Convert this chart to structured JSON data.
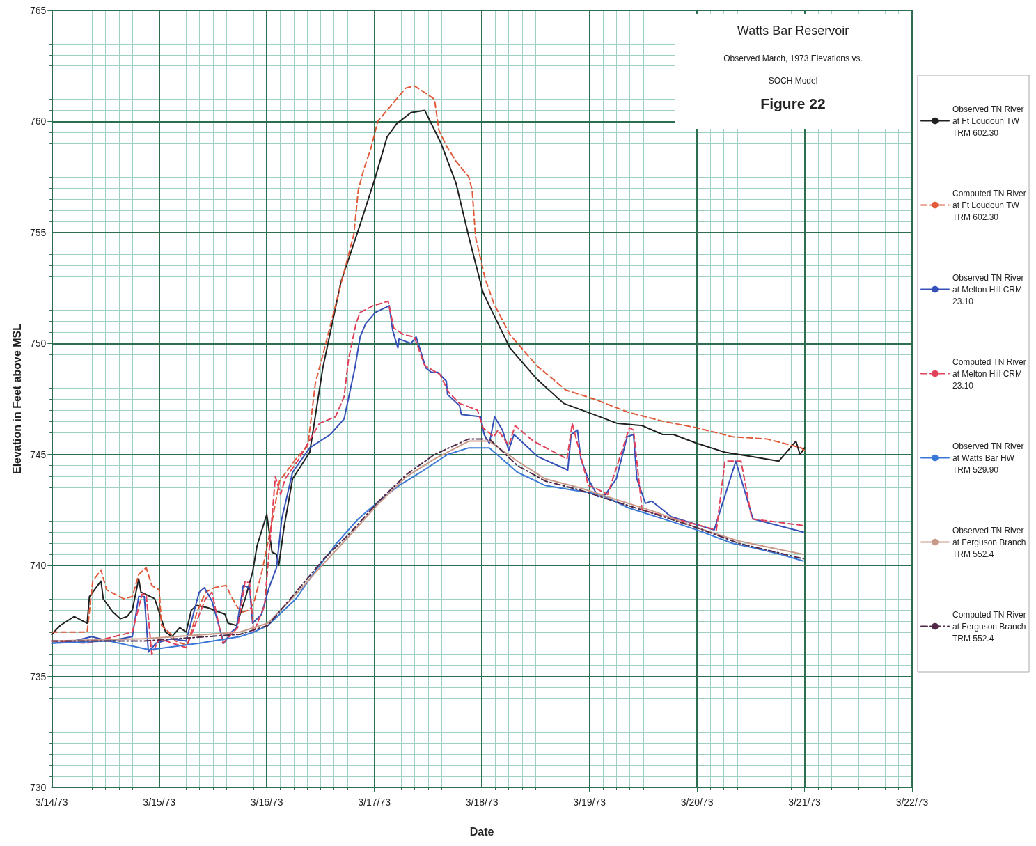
{
  "chart_data": {
    "type": "line",
    "title": "Watts Bar Reservoir",
    "subtitle": "Observed March, 1973 Elevations vs.\nSOCH Model",
    "annotations": [
      "Figure 22"
    ],
    "xlabel": "Date",
    "ylabel": "Elevation in Feet above MSL",
    "xlim": [
      "1973-03-14",
      "1973-03-22"
    ],
    "xticks": [
      {
        "value": "1973-03-14",
        "label": "3/14/73"
      },
      {
        "value": "1973-03-14T03:00",
        "label": null
      },
      {
        "value": "1973-03-14T06:00",
        "label": null
      },
      {
        "value": "1973-03-14T09:00",
        "label": null
      },
      {
        "value": "1973-03-14T12:00",
        "label": null
      },
      {
        "value": "1973-03-14T15:00",
        "label": null
      },
      {
        "value": "1973-03-14T18:00",
        "label": null
      },
      {
        "value": "1973-03-14T21:00",
        "label": null
      },
      {
        "value": "1973-03-15",
        "label": "3/15/73"
      },
      {
        "value": "1973-03-15T03:00",
        "label": null
      },
      {
        "value": "1973-03-15T06:00",
        "label": null
      },
      {
        "value": "1973-03-15T09:00",
        "label": null
      },
      {
        "value": "1973-03-15T12:00",
        "label": null
      },
      {
        "value": "1973-03-15T15:00",
        "label": null
      },
      {
        "value": "1973-03-15T18:00",
        "label": null
      },
      {
        "value": "1973-03-15T21:00",
        "label": null
      },
      {
        "value": "1973-03-16",
        "label": "3/16/73"
      },
      {
        "value": "1973-03-16T03:00",
        "label": null
      },
      {
        "value": "1973-03-16T06:00",
        "label": null
      },
      {
        "value": "1973-03-16T09:00",
        "label": null
      },
      {
        "value": "1973-03-16T12:00",
        "label": null
      },
      {
        "value": "1973-03-16T15:00",
        "label": null
      },
      {
        "value": "1973-03-16T18:00",
        "label": null
      },
      {
        "value": "1973-03-16T21:00",
        "label": null
      },
      {
        "value": "1973-03-17",
        "label": "3/17/73"
      },
      {
        "value": "1973-03-17T03:00",
        "label": null
      },
      {
        "value": "1973-03-17T06:00",
        "label": null
      },
      {
        "value": "1973-03-17T09:00",
        "label": null
      },
      {
        "value": "1973-03-17T12:00",
        "label": null
      },
      {
        "value": "1973-03-17T15:00",
        "label": null
      },
      {
        "value": "1973-03-17T18:00",
        "label": null
      },
      {
        "value": "1973-03-17T21:00",
        "label": null
      },
      {
        "value": "1973-03-18",
        "label": "3/18/73"
      },
      {
        "value": "1973-03-18T03:00",
        "label": null
      },
      {
        "value": "1973-03-18T06:00",
        "label": null
      },
      {
        "value": "1973-03-18T09:00",
        "label": null
      },
      {
        "value": "1973-03-18T12:00",
        "label": null
      },
      {
        "value": "1973-03-18T15:00",
        "label": null
      },
      {
        "value": "1973-03-18T18:00",
        "label": null
      },
      {
        "value": "1973-03-18T21:00",
        "label": null
      },
      {
        "value": "1973-03-19",
        "label": "3/19/73"
      },
      {
        "value": "1973-03-19T03:00",
        "label": null
      },
      {
        "value": "1973-03-19T06:00",
        "label": null
      },
      {
        "value": "1973-03-19T09:00",
        "label": null
      },
      {
        "value": "1973-03-19T12:00",
        "label": null
      },
      {
        "value": "1973-03-19T15:00",
        "label": null
      },
      {
        "value": "1973-03-19T18:00",
        "label": null
      },
      {
        "value": "1973-03-19T21:00",
        "label": null
      },
      {
        "value": "1973-03-20",
        "label": "3/20/73"
      },
      {
        "value": "1973-03-20T03:00",
        "label": null
      },
      {
        "value": "1973-03-20T06:00",
        "label": null
      },
      {
        "value": "1973-03-20T09:00",
        "label": null
      },
      {
        "value": "1973-03-20T12:00",
        "label": null
      },
      {
        "value": "1973-03-20T15:00",
        "label": null
      },
      {
        "value": "1973-03-20T18:00",
        "label": null
      },
      {
        "value": "1973-03-20T21:00",
        "label": null
      },
      {
        "value": "1973-03-21",
        "label": "3/21/73"
      },
      {
        "value": "1973-03-21T03:00",
        "label": null
      },
      {
        "value": "1973-03-21T06:00",
        "label": null
      },
      {
        "value": "1973-03-21T09:00",
        "label": null
      },
      {
        "value": "1973-03-21T12:00",
        "label": null
      },
      {
        "value": "1973-03-21T15:00",
        "label": null
      },
      {
        "value": "1973-03-21T18:00",
        "label": null
      },
      {
        "value": "1973-03-21T21:00",
        "label": null
      },
      {
        "value": "1973-03-22",
        "label": "3/22/73"
      }
    ],
    "ylim": [
      730,
      765
    ],
    "yticks": [
      730,
      {
        "value": 730.5,
        "label": null
      },
      {
        "value": 731,
        "label": null
      },
      {
        "value": 731.5,
        "label": null
      },
      {
        "value": 732,
        "label": null
      },
      {
        "value": 732.5,
        "label": null
      },
      {
        "value": 733,
        "label": null
      },
      {
        "value": 733.5,
        "label": null
      },
      {
        "value": 734,
        "label": null
      },
      {
        "value": 734.5,
        "label": null
      },
      735,
      {
        "value": 735.5,
        "label": null
      },
      {
        "value": 736,
        "label": null
      },
      {
        "value": 736.5,
        "label": null
      },
      {
        "value": 737,
        "label": null
      },
      {
        "value": 737.5,
        "label": null
      },
      {
        "value": 738,
        "label": null
      },
      {
        "value": 738.5,
        "label": null
      },
      {
        "value": 739,
        "label": null
      },
      {
        "value": 739.5,
        "label": null
      },
      740,
      {
        "value": 740.5,
        "label": null
      },
      {
        "value": 741,
        "label": null
      },
      {
        "value": 741.5,
        "label": null
      },
      {
        "value": 742,
        "label": null
      },
      {
        "value": 742.5,
        "label": null
      },
      {
        "value": 743,
        "label": null
      },
      {
        "value": 743.5,
        "label": null
      },
      {
        "value": 744,
        "label": null
      },
      {
        "value": 744.5,
        "label": null
      },
      745,
      {
        "value": 745.5,
        "label": null
      },
      {
        "value": 746,
        "label": null
      },
      {
        "value": 746.5,
        "label": null
      },
      {
        "value": 747,
        "label": null
      },
      {
        "value": 747.5,
        "label": null
      },
      {
        "value": 748,
        "label": null
      },
      {
        "value": 748.5,
        "label": null
      },
      {
        "value": 749,
        "label": null
      },
      {
        "value": 749.5,
        "label": null
      },
      750,
      {
        "value": 750.5,
        "label": null
      },
      {
        "value": 751,
        "label": null
      },
      {
        "value": 751.5,
        "label": null
      },
      {
        "value": 752,
        "label": null
      },
      {
        "value": 752.5,
        "label": null
      },
      {
        "value": 753,
        "label": null
      },
      {
        "value": 753.5,
        "label": null
      },
      {
        "value": 754,
        "label": null
      },
      {
        "value": 754.5,
        "label": null
      },
      755,
      {
        "value": 755.5,
        "label": null
      },
      {
        "value": 756,
        "label": null
      },
      {
        "value": 756.5,
        "label": null
      },
      {
        "value": 757,
        "label": null
      },
      {
        "value": 757.5,
        "label": null
      },
      {
        "value": 758,
        "label": null
      },
      {
        "value": 758.5,
        "label": null
      },
      {
        "value": 759,
        "label": null
      },
      {
        "value": 759.5,
        "label": null
      },
      760,
      {
        "value": 760.5,
        "label": null
      },
      {
        "value": 761,
        "label": null
      },
      {
        "value": 761.5,
        "label": null
      },
      {
        "value": 762,
        "label": null
      },
      {
        "value": 762.5,
        "label": null
      },
      {
        "value": 763,
        "label": null
      },
      {
        "value": 763.5,
        "label": null
      },
      {
        "value": 764,
        "label": null
      },
      {
        "value": 764.5,
        "label": null
      },
      765
    ],
    "grid": true,
    "legend": "right",
    "marker": "none",
    "series": [
      {
        "name": "Observed TN River at Ft Loudoun TW TRM 602.30",
        "color": "#202020",
        "line_style": "solid",
        "x": [
          "1973-03-14T00:00",
          "1973-03-14T01:55",
          "1973-03-14T05:00",
          "1973-03-14T07:55",
          "1973-03-14T08:25",
          "1973-03-14T11:00",
          "1973-03-14T11:30",
          "1973-03-14T13:40",
          "1973-03-14T15:20",
          "1973-03-14T16:50",
          "1973-03-14T18:00",
          "1973-03-14T19:25",
          "1973-03-14T19:55",
          "1973-03-14T23:00",
          "1973-03-15T01:25",
          "1973-03-15T02:50",
          "1973-03-15T04:35",
          "1973-03-15T06:00",
          "1973-03-15T07:10",
          "1973-03-15T08:25",
          "1973-03-15T10:50",
          "1973-03-15T14:40",
          "1973-03-15T15:20",
          "1973-03-15T17:15",
          "1973-03-15T19:10",
          "1973-03-15T20:50",
          "1973-03-15T21:50",
          "1973-03-16T00:00",
          "1973-03-16T01:10",
          "1973-03-16T02:10",
          "1973-03-16T02:40",
          "1973-03-16T03:50",
          "1973-03-16T05:45",
          "1973-03-16T09:35",
          "1973-03-16T12:30",
          "1973-03-16T16:35",
          "1973-03-16T20:25",
          "1973-03-17T00:15",
          "1973-03-17T02:50",
          "1973-03-17T05:00",
          "1973-03-17T08:10",
          "1973-03-17T11:15",
          "1973-03-17T14:55",
          "1973-03-17T18:15",
          "1973-03-17T21:05",
          "1973-03-18T00:15",
          "1973-03-18T01:40",
          "1973-03-18T06:15",
          "1973-03-18T12:15",
          "1973-03-18T18:15",
          "1973-03-19T01:00",
          "1973-03-19T06:15",
          "1973-03-19T11:45",
          "1973-03-19T16:20",
          "1973-03-19T18:45",
          "1973-03-20T00:00",
          "1973-03-20T06:15",
          "1973-03-20T12:30",
          "1973-03-20T18:15",
          "1973-03-20T22:05",
          "1973-03-20T23:00",
          "1973-03-21T00:00"
        ],
        "values": [
          736.9,
          737.3,
          737.7,
          737.4,
          738.6,
          739.3,
          738.5,
          737.9,
          737.6,
          737.7,
          738.0,
          739.4,
          738.8,
          738.5,
          737.0,
          736.8,
          737.2,
          737.0,
          738.0,
          738.2,
          738.1,
          737.8,
          737.4,
          737.3,
          738.5,
          739.7,
          740.9,
          742.3,
          740.6,
          740.5,
          740.0,
          741.7,
          743.9,
          745.1,
          748.9,
          752.8,
          755.1,
          757.5,
          759.3,
          759.9,
          760.4,
          760.5,
          759.0,
          757.2,
          754.8,
          752.3,
          751.7,
          749.8,
          748.4,
          747.3,
          746.8,
          746.4,
          746.3,
          745.9,
          745.9,
          745.5,
          745.1,
          744.9,
          744.7,
          745.6,
          745.0,
          745.3
        ]
      },
      {
        "name": "Computed TN River at Ft Loudoun TW TRM 602.30",
        "color": "#e05a3a",
        "line_style": "dashed",
        "x": [
          "1973-03-14T00:00",
          "1973-03-14T07:55",
          "1973-03-14T09:10",
          "1973-03-14T11:00",
          "1973-03-14T12:15",
          "1973-03-14T16:05",
          "1973-03-14T18:00",
          "1973-03-14T19:25",
          "1973-03-14T21:05",
          "1973-03-14T22:20",
          "1973-03-15T00:00",
          "1973-03-15T00:30",
          "1973-03-15T02:40",
          "1973-03-15T03:35",
          "1973-03-15T06:15",
          "1973-03-15T08:25",
          "1973-03-15T10:20",
          "1973-03-15T12:15",
          "1973-03-15T14:55",
          "1973-03-15T16:05",
          "1973-03-15T17:30",
          "1973-03-15T18:30",
          "1973-03-15T20:10",
          "1973-03-15T21:05",
          "1973-03-15T23:00",
          "1973-03-16T01:00",
          "1973-03-16T02:50",
          "1973-03-16T06:30",
          "1973-03-16T09:10",
          "1973-03-16T10:50",
          "1973-03-16T13:10",
          "1973-03-16T16:50",
          "1973-03-16T19:25",
          "1973-03-16T20:25",
          "1973-03-16T21:35",
          "1973-03-16T23:15",
          "1973-03-17T00:45",
          "1973-03-17T02:50",
          "1973-03-17T07:00",
          "1973-03-17T08:55",
          "1973-03-17T11:15",
          "1973-03-17T13:25",
          "1973-03-17T14:25",
          "1973-03-17T16:05",
          "1973-03-17T18:15",
          "1973-03-17T21:05",
          "1973-03-17T21:50",
          "1973-03-17T22:35",
          "1973-03-18T00:45",
          "1973-03-18T02:40",
          "1973-03-18T06:15",
          "1973-03-18T12:15",
          "1973-03-18T18:45",
          "1973-03-19T01:00",
          "1973-03-19T08:40",
          "1973-03-19T16:20",
          "1973-03-20T00:00",
          "1973-03-20T07:55",
          "1973-03-20T15:35",
          "1973-03-20T23:15",
          "1973-03-21T00:30"
        ],
        "values": [
          737.0,
          737.0,
          739.3,
          739.8,
          738.9,
          738.5,
          738.6,
          739.6,
          739.9,
          739.1,
          738.9,
          737.3,
          736.9,
          736.6,
          736.4,
          737.9,
          738.8,
          739.0,
          739.1,
          738.6,
          738.1,
          737.9,
          738.0,
          738.3,
          739.8,
          741.8,
          743.8,
          744.8,
          745.4,
          748.2,
          750.0,
          752.9,
          754.9,
          756.9,
          757.8,
          758.8,
          760.0,
          760.5,
          761.5,
          761.6,
          761.3,
          761.0,
          759.6,
          758.9,
          758.2,
          757.5,
          756.9,
          754.8,
          752.9,
          751.8,
          750.4,
          749.0,
          747.9,
          747.5,
          746.9,
          746.5,
          746.2,
          745.8,
          745.7,
          745.3,
          745.1
        ]
      },
      {
        "name": "Observed TN River at Melton Hill CRM 23.10",
        "color": "#3550b8",
        "line_style": "solid",
        "x": [
          "1973-03-14T00:00",
          "1973-03-14T05:00",
          "1973-03-14T08:55",
          "1973-03-14T12:45",
          "1973-03-14T18:00",
          "1973-03-14T19:25",
          "1973-03-14T20:40",
          "1973-03-14T21:35",
          "1973-03-14T23:15",
          "1973-03-15T02:40",
          "1973-03-15T06:00",
          "1973-03-15T08:55",
          "1973-03-15T10:05",
          "1973-03-15T11:45",
          "1973-03-15T14:25",
          "1973-03-15T16:05",
          "1973-03-15T17:15",
          "1973-03-15T18:45",
          "1973-03-15T20:10",
          "1973-03-15T20:50",
          "1973-03-15T22:50",
          "1973-03-16T00:30",
          "1973-03-16T02:10",
          "1973-03-16T03:20",
          "1973-03-16T05:45",
          "1973-03-16T09:35",
          "1973-03-16T14:10",
          "1973-03-16T17:15",
          "1973-03-16T19:40",
          "1973-03-16T20:50",
          "1973-03-16T22:05",
          "1973-03-17T00:15",
          "1973-03-17T03:20",
          "1973-03-17T04:05",
          "1973-03-17T05:15",
          "1973-03-17T05:30",
          "1973-03-17T08:10",
          "1973-03-17T09:20",
          "1973-03-17T11:30",
          "1973-03-17T12:45",
          "1973-03-17T14:10",
          "1973-03-17T16:05",
          "1973-03-17T16:20",
          "1973-03-17T19:00",
          "1973-03-17T19:25",
          "1973-03-17T23:45",
          "1973-03-18T00:30",
          "1973-03-18T01:40",
          "1973-03-18T02:50",
          "1973-03-18T04:35",
          "1973-03-18T06:00",
          "1973-03-18T07:10",
          "1973-03-18T12:30",
          "1973-03-18T19:10",
          "1973-03-18T19:55",
          "1973-03-18T21:20",
          "1973-03-18T22:05",
          "1973-03-18T23:45",
          "1973-03-19T01:55",
          "1973-03-19T03:35",
          "1973-03-19T06:00",
          "1973-03-19T08:25",
          "1973-03-19T09:50",
          "1973-03-19T10:35",
          "1973-03-19T12:30",
          "1973-03-19T13:55",
          "1973-03-19T18:15",
          "1973-03-20T03:50",
          "1973-03-20T08:40",
          "1973-03-20T12:30",
          "1973-03-20T23:45"
        ],
        "values": [
          736.5,
          736.6,
          736.8,
          736.6,
          736.8,
          738.6,
          738.6,
          736.1,
          736.5,
          736.7,
          736.6,
          738.8,
          739.0,
          738.4,
          736.5,
          737.0,
          737.2,
          739.1,
          739.0,
          737.4,
          737.8,
          739.0,
          739.9,
          742.1,
          744.2,
          745.3,
          745.9,
          746.6,
          748.9,
          750.3,
          750.9,
          751.4,
          751.7,
          750.6,
          749.8,
          750.2,
          750.0,
          750.3,
          748.9,
          748.7,
          748.7,
          748.3,
          747.7,
          747.2,
          746.8,
          746.7,
          745.9,
          745.5,
          746.7,
          746.1,
          745.2,
          745.9,
          744.9,
          744.3,
          745.9,
          746.1,
          744.8,
          743.9,
          743.1,
          743.2,
          743.9,
          745.8,
          745.9,
          743.9,
          742.8,
          742.9,
          742.2,
          741.6,
          744.7,
          742.1,
          741.5
        ]
      },
      {
        "name": "Computed TN River at Melton Hill CRM 23.10",
        "color": "#e0405a",
        "line_style": "dashed",
        "x": [
          "1973-03-14T00:00",
          "1973-03-14T07:55",
          "1973-03-14T18:00",
          "1973-03-14T20:10",
          "1973-03-14T21:05",
          "1973-03-14T22:20",
          "1973-03-15T00:00",
          "1973-03-15T06:00",
          "1973-03-15T10:20",
          "1973-03-15T11:45",
          "1973-03-15T14:10",
          "1973-03-15T17:30",
          "1973-03-15T19:10",
          "1973-03-15T20:10",
          "1973-03-15T21:05",
          "1973-03-15T23:30",
          "1973-03-16T01:55",
          "1973-03-16T03:05",
          "1973-03-16T04:05",
          "1973-03-16T07:10",
          "1973-03-16T11:45",
          "1973-03-16T15:20",
          "1973-03-16T17:15",
          "1973-03-16T18:15",
          "1973-03-16T19:55",
          "1973-03-16T20:50",
          "1973-03-16T23:45",
          "1973-03-17T03:05",
          "1973-03-17T04:20",
          "1973-03-17T06:30",
          "1973-03-17T08:55",
          "1973-03-17T11:15",
          "1973-03-17T14:40",
          "1973-03-17T16:35",
          "1973-03-17T19:00",
          "1973-03-17T23:00",
          "1973-03-18T00:15",
          "1973-03-18T02:40",
          "1973-03-18T03:35",
          "1973-03-18T06:00",
          "1973-03-18T07:25",
          "1973-03-18T11:30",
          "1973-03-18T19:00",
          "1973-03-18T20:10",
          "1973-03-18T23:45",
          "1973-03-19T01:10",
          "1973-03-19T04:05",
          "1973-03-19T08:55",
          "1973-03-19T09:50",
          "1973-03-19T11:45",
          "1973-03-20T04:20",
          "1973-03-20T06:15",
          "1973-03-20T09:50",
          "1973-03-20T12:15",
          "1973-03-20T23:45"
        ],
        "values": [
          736.6,
          736.5,
          737.0,
          738.7,
          738.7,
          736.0,
          736.7,
          736.3,
          738.5,
          738.8,
          736.5,
          737.2,
          739.3,
          739.2,
          737.0,
          738.2,
          744.0,
          743.2,
          743.9,
          744.8,
          746.4,
          746.7,
          747.6,
          749.3,
          750.9,
          751.4,
          751.7,
          751.9,
          750.7,
          750.4,
          750.3,
          749.0,
          748.6,
          747.8,
          747.3,
          747.0,
          746.2,
          745.8,
          746.1,
          745.4,
          746.3,
          745.6,
          744.8,
          746.4,
          743.6,
          743.5,
          743.2,
          746.2,
          746.1,
          742.5,
          741.6,
          744.7,
          744.7,
          742.1,
          741.8
        ]
      },
      {
        "name": "Observed TN River at Watts Bar HW TRM 529.90",
        "color": "#3a78d8",
        "line_style": "solid",
        "x": [
          "1973-03-14T00:00",
          "1973-03-14T12:45",
          "1973-03-14T21:50",
          "1973-03-15T08:55",
          "1973-03-15T18:00",
          "1973-03-15T21:05",
          "1973-03-16T00:15",
          "1973-03-16T06:30",
          "1973-03-16T11:00",
          "1973-03-16T15:35",
          "1973-03-16T20:25",
          "1973-03-17T01:00",
          "1973-03-17T05:30",
          "1973-03-17T10:20",
          "1973-03-17T16:20",
          "1973-03-17T21:05",
          "1973-03-18T01:40",
          "1973-03-18T07:55",
          "1973-03-18T14:10",
          "1973-03-18T20:10",
          "1973-03-19T02:25",
          "1973-03-19T08:40",
          "1973-03-19T18:00",
          "1973-03-20T00:00",
          "1973-03-20T07:55",
          "1973-03-20T12:30",
          "1973-03-20T18:45",
          "1973-03-20T23:45"
        ],
        "values": [
          736.5,
          736.6,
          736.2,
          736.5,
          736.8,
          737.0,
          737.3,
          738.5,
          739.8,
          741.0,
          742.1,
          742.9,
          743.6,
          744.2,
          745.0,
          745.3,
          745.3,
          744.2,
          743.6,
          743.4,
          743.2,
          742.6,
          742.0,
          741.6,
          741.0,
          740.8,
          740.5,
          740.2
        ]
      },
      {
        "name": "Observed TN River at Ferguson Branch TRM 552.4",
        "color": "#c89888",
        "line_style": "solid",
        "x": [
          "1973-03-14T00:00",
          "1973-03-14T20:25",
          "1973-03-15T18:00",
          "1973-03-16T00:15",
          "1973-03-16T06:30",
          "1973-03-16T12:45",
          "1973-03-16T18:45",
          "1973-03-17T01:00",
          "1973-03-17T07:10",
          "1973-03-17T13:25",
          "1973-03-17T21:05",
          "1973-03-18T01:40",
          "1973-03-18T07:55",
          "1973-03-18T14:10",
          "1973-03-18T21:50",
          "1973-03-19T05:30",
          "1973-03-19T14:55",
          "1973-03-20T00:00",
          "1973-03-20T09:20",
          "1973-03-20T23:45"
        ],
        "values": [
          736.6,
          736.7,
          737.0,
          737.4,
          738.7,
          740.1,
          741.4,
          742.8,
          744.0,
          744.8,
          745.6,
          745.6,
          744.7,
          743.9,
          743.5,
          743.0,
          742.4,
          741.7,
          741.1,
          740.5
        ]
      },
      {
        "name": "Computed TN River at Ferguson Branch TRM 552.4",
        "color": "#502848",
        "line_style": "dashdot",
        "x": [
          "1973-03-14T00:00",
          "1973-03-14T20:25",
          "1973-03-15T18:00",
          "1973-03-16T00:15",
          "1973-03-16T06:30",
          "1973-03-16T12:45",
          "1973-03-16T18:45",
          "1973-03-17T01:00",
          "1973-03-17T07:10",
          "1973-03-17T13:25",
          "1973-03-17T21:05",
          "1973-03-18T01:40",
          "1973-03-18T07:55",
          "1973-03-18T14:10",
          "1973-03-18T21:50",
          "1973-03-19T05:30",
          "1973-03-19T14:55",
          "1973-03-20T00:00",
          "1973-03-20T09:20",
          "1973-03-20T23:45"
        ],
        "values": [
          736.6,
          736.6,
          736.9,
          737.3,
          738.8,
          740.3,
          741.5,
          742.9,
          744.1,
          745.0,
          745.7,
          745.7,
          744.5,
          743.8,
          743.4,
          742.9,
          742.3,
          741.7,
          741.0,
          740.3
        ]
      }
    ]
  }
}
